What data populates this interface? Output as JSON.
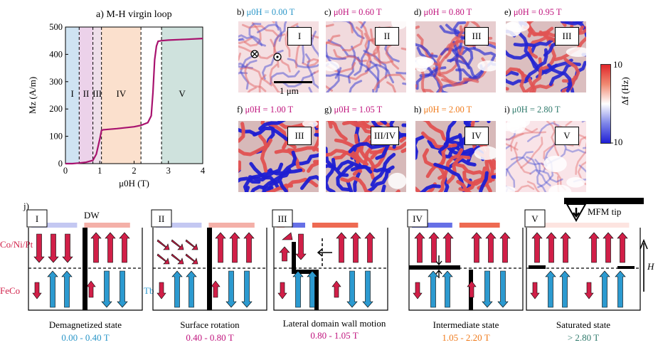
{
  "colors": {
    "red": "#d11f48",
    "blue": "#2c9ad0",
    "cyan": "#2a96c8",
    "magenta": "#c0157e",
    "orange": "#f07a1a",
    "teal": "#2f7a6c",
    "region1": "#cfe3f2",
    "region2": "#ecd2ea",
    "region3": "#eedfea",
    "region4": "#fbe0cd",
    "region5": "#cfe2dd"
  },
  "chart_data": {
    "type": "line",
    "title": "a) M-H virgin loop",
    "xlabel": "μ0H (T)",
    "ylabel": "Mz (A/m)",
    "xlim": [
      0,
      4
    ],
    "ylim": [
      0,
      500
    ],
    "xticks": [
      "0",
      "1",
      "2",
      "3",
      "4"
    ],
    "yticks": [
      "0",
      "100",
      "200",
      "300",
      "400",
      "500"
    ],
    "x": [
      0,
      0.2,
      0.4,
      0.6,
      0.8,
      0.9,
      1.0,
      1.05,
      1.1,
      1.5,
      2.0,
      2.2,
      2.4,
      2.5,
      2.55,
      2.6,
      2.65,
      2.7,
      2.8,
      3.0,
      3.5,
      4.0
    ],
    "y": [
      0,
      0,
      2,
      5,
      12,
      35,
      90,
      122,
      124,
      128,
      135,
      140,
      150,
      175,
      260,
      380,
      430,
      448,
      450,
      452,
      455,
      458
    ],
    "regions": [
      {
        "label": "I",
        "from": 0,
        "to": 0.4
      },
      {
        "label": "II",
        "from": 0.4,
        "to": 0.8
      },
      {
        "label": "III",
        "from": 0.8,
        "to": 1.05
      },
      {
        "label": "IV",
        "from": 1.05,
        "to": 2.2
      },
      {
        "label": "V",
        "from": 2.8,
        "to": 4.0
      }
    ],
    "dashed_lines": [
      0.4,
      0.8,
      1.05,
      2.2,
      2.8
    ]
  },
  "mfm": {
    "colorbar": {
      "max": "10",
      "min": "-10",
      "label": "Δf (Hz)"
    },
    "scalebar": "1 μm",
    "panels": [
      {
        "letter": "b)",
        "field": "μ0H = 0.00 T",
        "region": "I",
        "color": "cyan",
        "intensity": 0.25,
        "white": 0.0,
        "seed": 3
      },
      {
        "letter": "c)",
        "field": "μ0H = 0.60 T",
        "region": "II",
        "color": "magenta",
        "intensity": 0.35,
        "white": 0.15,
        "seed": 7
      },
      {
        "letter": "d)",
        "field": "μ0H = 0.80 T",
        "region": "III",
        "color": "magenta",
        "intensity": 0.6,
        "white": 0.35,
        "seed": 11
      },
      {
        "letter": "e)",
        "field": "μ0H = 0.95 T",
        "region": "III",
        "color": "magenta",
        "intensity": 0.9,
        "white": 0.3,
        "seed": 13
      },
      {
        "letter": "f)",
        "field": "μ0H = 1.00 T",
        "region": "III",
        "color": "magenta",
        "intensity": 1.0,
        "white": 0.05,
        "seed": 17
      },
      {
        "letter": "g)",
        "field": "μ0H = 1.05 T",
        "region": "III/IV",
        "color": "magenta",
        "intensity": 1.0,
        "white": 0.1,
        "seed": 19
      },
      {
        "letter": "h)",
        "field": "μ0H = 2.00 T",
        "region": "IV",
        "color": "orange",
        "intensity": 1.0,
        "white": 0.1,
        "seed": 23
      },
      {
        "letter": "i)",
        "field": "μ0H = 2.80 T",
        "region": "V",
        "color": "teal",
        "intensity": 0.15,
        "white": 0.7,
        "seed": 29
      }
    ]
  },
  "schematic": {
    "label": "j)",
    "dw_label": "DW",
    "mfm_tip_label": "MFM tip",
    "layer_top": "Co/Ni/Pt",
    "layer_fe": "FeCo",
    "layer_tb": "Tb",
    "field_axis": "H",
    "states": [
      {
        "region": "I",
        "name": "Demagnetized state",
        "range": "0.00 - 0.40 T",
        "color": "cyan"
      },
      {
        "region": "II",
        "name": "Surface rotation",
        "range": "0.40 - 0.80 T",
        "color": "magenta"
      },
      {
        "region": "III",
        "name": "Lateral domain wall motion",
        "range": "0.80 - 1.05 T",
        "color": "magenta"
      },
      {
        "region": "IV",
        "name": "Intermediate state",
        "range": "1.05 - 2.20 T",
        "color": "orange"
      },
      {
        "region": "V",
        "name": "Saturated state",
        "range": "> 2.80 T",
        "color": "teal"
      }
    ]
  }
}
